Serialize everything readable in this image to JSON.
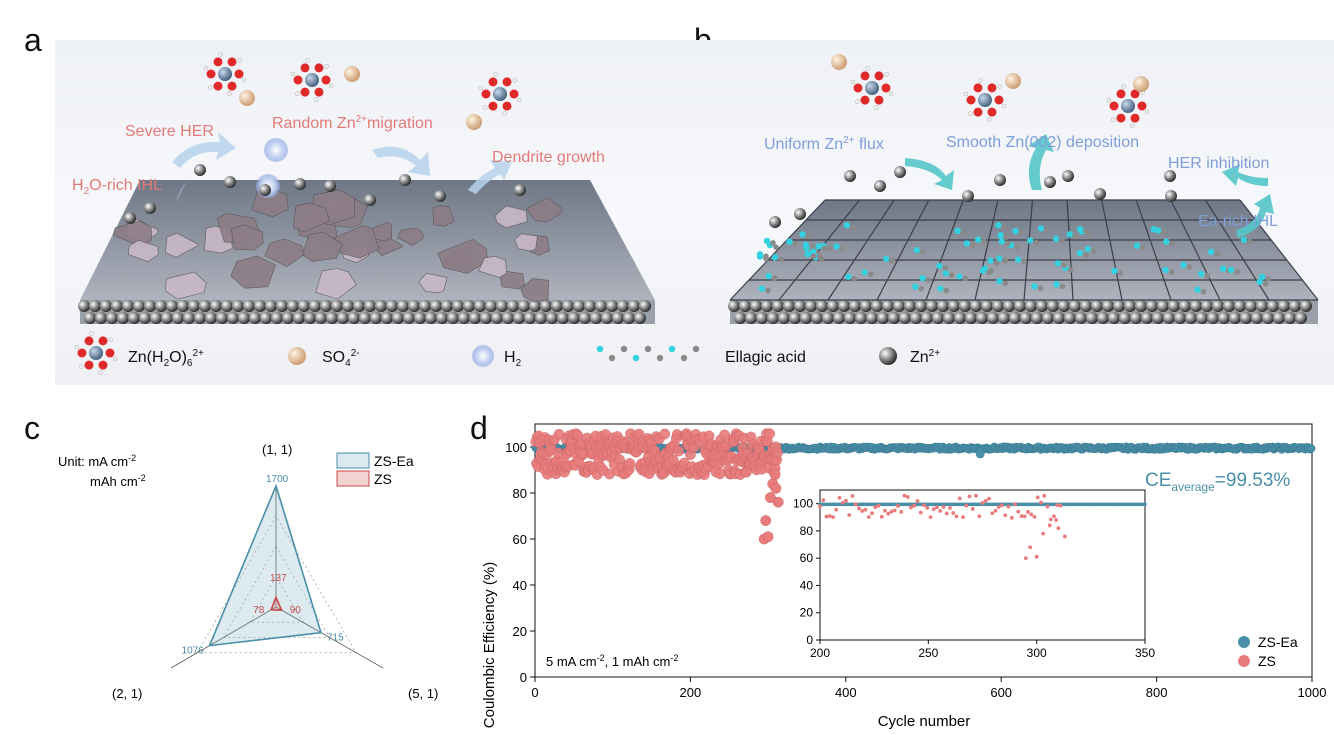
{
  "panels": {
    "a": "a",
    "b": "b",
    "c": "c",
    "d": "d"
  },
  "schematic_a": {
    "labels": {
      "severe_her": "Severe HER",
      "random_zn_pre": "Random Zn",
      "random_zn_sup": "2+",
      "random_zn_post": "migration",
      "h2o_ihl_pre": "H",
      "h2o_ihl_sub": "2",
      "h2o_ihl_post": "O-rich IHL",
      "dendrite": "Dendrite growth"
    },
    "color": "#e27b78"
  },
  "schematic_b": {
    "labels": {
      "uniform_pre": "Uniform  Zn",
      "uniform_sup": "2+",
      "uniform_post": " flux",
      "smooth": "Smooth Zn(002) deposition",
      "her_inhibition": "HER inhibition",
      "ea_ihl": "Ea-rich IHL"
    },
    "color": "#7f9fd8"
  },
  "legend_top": {
    "zn_h2o_pre": "Zn(H",
    "zn_h2o_sub1": "2",
    "zn_h2o_mid": "O)",
    "zn_h2o_sub2": "6",
    "zn_h2o_sup": "2+",
    "so4_pre": "SO",
    "so4_sub": "4",
    "so4_sup": "2-",
    "h2_pre": "H",
    "h2_sub": "2",
    "ellagic": "Ellagic acid",
    "zn_pre": "Zn",
    "zn_sup": "2+"
  },
  "chart_data": [
    {
      "type": "radar",
      "unit_line1_pre": "Unit: mA cm",
      "unit_line1_sup": "-2",
      "unit_line2_pre": "mAh cm",
      "unit_line2_sup": "-2",
      "axes": [
        "(1, 1)",
        "(2, 1)",
        "(5, 1)"
      ],
      "max": 1700,
      "series": [
        {
          "name": "ZS-Ea",
          "values": [
            1700,
            1076,
            715
          ],
          "labels": [
            "1700",
            "1076",
            "715"
          ],
          "color": "#4a8fa8"
        },
        {
          "name": "ZS",
          "values": [
            137,
            78,
            90
          ],
          "labels": [
            "137",
            "78",
            "90"
          ],
          "color": "#c84a4a"
        }
      ]
    },
    {
      "type": "scatter",
      "xlabel": "Cycle number",
      "ylabel": "Coulombic Efficiency (%)",
      "xlim": [
        0,
        1000
      ],
      "ylim": [
        0,
        110
      ],
      "xticks": [
        0,
        200,
        400,
        600,
        800,
        1000
      ],
      "yticks": [
        0,
        20,
        40,
        60,
        80,
        100
      ],
      "annotation_pre": "CE",
      "annotation_sub": "average",
      "annotation_post": "=99.53%",
      "condition_a": "5 mA cm",
      "condition_a_sup": "-2",
      "condition_b": ", 1 mAh cm",
      "condition_b_sup": "-2",
      "series": [
        {
          "name": "ZS-Ea",
          "color": "#4a8fa8",
          "x_range": [
            1,
            1000
          ],
          "y_typical": 99.5,
          "outlier": {
            "x": 573,
            "y": 97
          }
        },
        {
          "name": "ZS",
          "color": "#e87c7c",
          "x_range": [
            1,
            312
          ],
          "y_band": [
            88,
            106
          ],
          "low_points": [
            {
              "x": 297,
              "y": 68
            },
            {
              "x": 295,
              "y": 60
            },
            {
              "x": 300,
              "y": 61
            },
            {
              "x": 303,
              "y": 78
            },
            {
              "x": 306,
              "y": 84
            },
            {
              "x": 310,
              "y": 82
            },
            {
              "x": 313,
              "y": 76
            },
            {
              "x": 309,
              "y": 88
            }
          ]
        }
      ],
      "inset": {
        "xlim": [
          200,
          350
        ],
        "ylim": [
          0,
          110
        ],
        "xticks": [
          200,
          250,
          300,
          350
        ],
        "yticks": [
          0,
          20,
          40,
          60,
          80,
          100
        ]
      }
    }
  ]
}
